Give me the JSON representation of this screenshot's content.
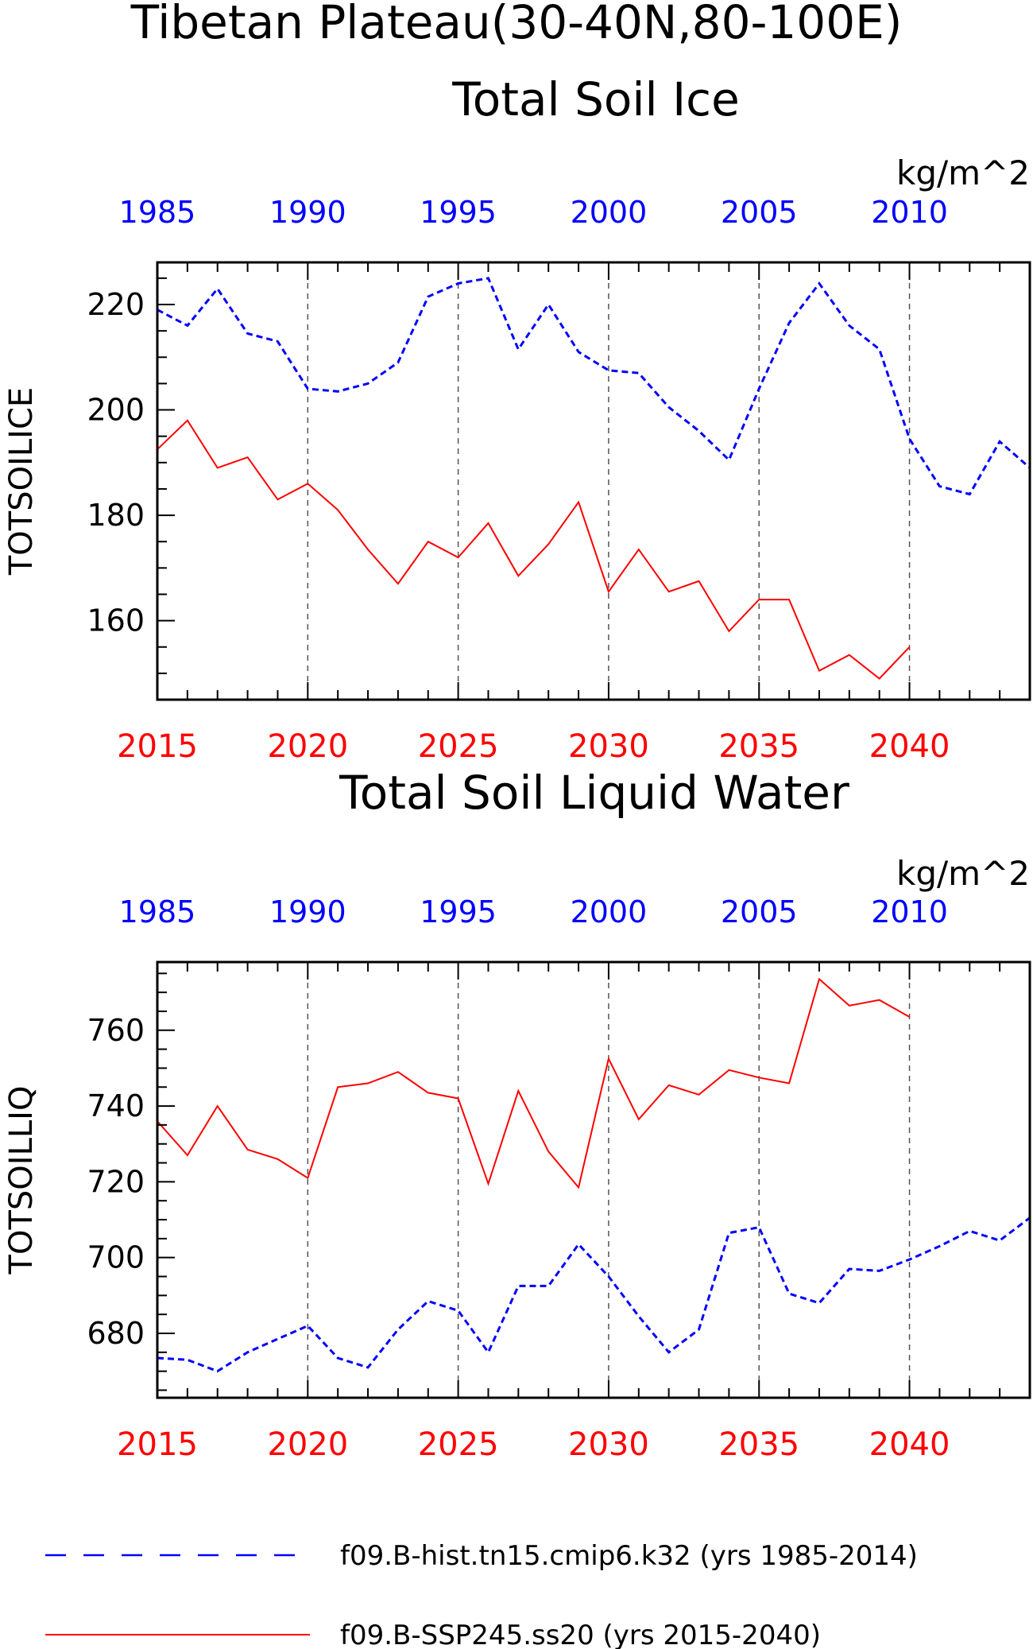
{
  "figure": {
    "title_line1": "Tibetan Plateau(30-40N,80-100E)"
  },
  "colors": {
    "hist": "#0000ff",
    "ssp": "#ff0000",
    "axis": "#000000",
    "grid": "#555555"
  },
  "legend": {
    "hist_label": "f09.B-hist.tn15.cmip6.k32 (yrs 1985-2014)",
    "ssp_label": "f09.B-SSP245.ss20 (yrs 2015-2040)"
  },
  "chart_data": [
    {
      "type": "line",
      "title": "Total Soil Ice",
      "units": "kg/m^2",
      "ylabel": "TOTSOILICE",
      "ylim": [
        145,
        228
      ],
      "yticks": [
        160,
        180,
        200,
        220
      ],
      "bottom_axis": {
        "label_color": "red",
        "xlim": [
          2015,
          2044
        ],
        "tick_labels": [
          "2015",
          "2020",
          "2025",
          "2030",
          "2035",
          "2040"
        ]
      },
      "top_axis": {
        "label_color": "blue",
        "xlim": [
          1985,
          2014
        ],
        "tick_labels": [
          "1985",
          "1990",
          "1995",
          "2000",
          "2005",
          "2010"
        ]
      },
      "grid": "dashed vertical lines every 5 years",
      "series": [
        {
          "name": "f09.B-hist.tn15.cmip6.k32 (yrs 1985-2014)",
          "style": "dashed",
          "color": "blue",
          "x": [
            1985,
            1986,
            1987,
            1988,
            1989,
            1990,
            1991,
            1992,
            1993,
            1994,
            1995,
            1996,
            1997,
            1998,
            1999,
            2000,
            2001,
            2002,
            2003,
            2004,
            2005,
            2006,
            2007,
            2008,
            2009,
            2010,
            2011,
            2012,
            2013,
            2014
          ],
          "values": [
            219,
            216,
            223,
            214.5,
            213,
            204,
            203.5,
            205,
            209,
            221.5,
            224,
            225,
            211.5,
            220,
            211,
            207.5,
            207,
            200.5,
            196,
            190.5,
            204,
            216.5,
            224,
            216,
            211.5,
            194.5,
            185.5,
            184,
            194,
            189
          ]
        },
        {
          "name": "f09.B-SSP245.ss20 (yrs 2015-2040)",
          "style": "solid",
          "color": "red",
          "x": [
            2015,
            2016,
            2017,
            2018,
            2019,
            2020,
            2021,
            2022,
            2023,
            2024,
            2025,
            2026,
            2027,
            2028,
            2029,
            2030,
            2031,
            2032,
            2033,
            2034,
            2035,
            2036,
            2037,
            2038,
            2039,
            2040
          ],
          "values": [
            192.5,
            198,
            189,
            191,
            183,
            186,
            181,
            173.5,
            167,
            175,
            172,
            178.5,
            168.5,
            174.5,
            182.5,
            165.5,
            173.5,
            165.5,
            167.5,
            158,
            164,
            164,
            150.5,
            153.5,
            149,
            155
          ]
        }
      ]
    },
    {
      "type": "line",
      "title": "Total Soil Liquid Water",
      "units": "kg/m^2",
      "ylabel": "TOTSOILLIQ",
      "ylim": [
        663,
        778
      ],
      "yticks": [
        680,
        700,
        720,
        740,
        760
      ],
      "bottom_axis": {
        "label_color": "red",
        "xlim": [
          2015,
          2044
        ],
        "tick_labels": [
          "2015",
          "2020",
          "2025",
          "2030",
          "2035",
          "2040"
        ]
      },
      "top_axis": {
        "label_color": "blue",
        "xlim": [
          1985,
          2014
        ],
        "tick_labels": [
          "1985",
          "1990",
          "1995",
          "2000",
          "2005",
          "2010"
        ]
      },
      "grid": "dashed vertical lines every 5 years",
      "series": [
        {
          "name": "f09.B-hist.tn15.cmip6.k32 (yrs 1985-2014)",
          "style": "dashed",
          "color": "blue",
          "x": [
            1985,
            1986,
            1987,
            1988,
            1989,
            1990,
            1991,
            1992,
            1993,
            1994,
            1995,
            1996,
            1997,
            1998,
            1999,
            2000,
            2001,
            2002,
            2003,
            2004,
            2005,
            2006,
            2007,
            2008,
            2009,
            2010,
            2011,
            2012,
            2013,
            2014
          ],
          "values": [
            673.5,
            673,
            670,
            675,
            678.5,
            682,
            673.5,
            671,
            681,
            688.5,
            686,
            675,
            692.5,
            692.5,
            703.5,
            695,
            684.5,
            675,
            681,
            706.5,
            708,
            690.5,
            688,
            697,
            696.5,
            699.5,
            703,
            707,
            704.5,
            710.5
          ]
        },
        {
          "name": "f09.B-SSP245.ss20 (yrs 2015-2040)",
          "style": "solid",
          "color": "red",
          "x": [
            2015,
            2016,
            2017,
            2018,
            2019,
            2020,
            2021,
            2022,
            2023,
            2024,
            2025,
            2026,
            2027,
            2028,
            2029,
            2030,
            2031,
            2032,
            2033,
            2034,
            2035,
            2036,
            2037,
            2038,
            2039,
            2040
          ],
          "values": [
            736,
            727,
            740,
            728.5,
            726,
            721,
            745,
            746,
            749,
            743.5,
            742,
            719.5,
            744,
            728,
            718.5,
            752.5,
            736.5,
            745.5,
            743,
            749.5,
            747.5,
            746,
            773.5,
            766.5,
            768,
            763.5
          ]
        }
      ]
    }
  ]
}
